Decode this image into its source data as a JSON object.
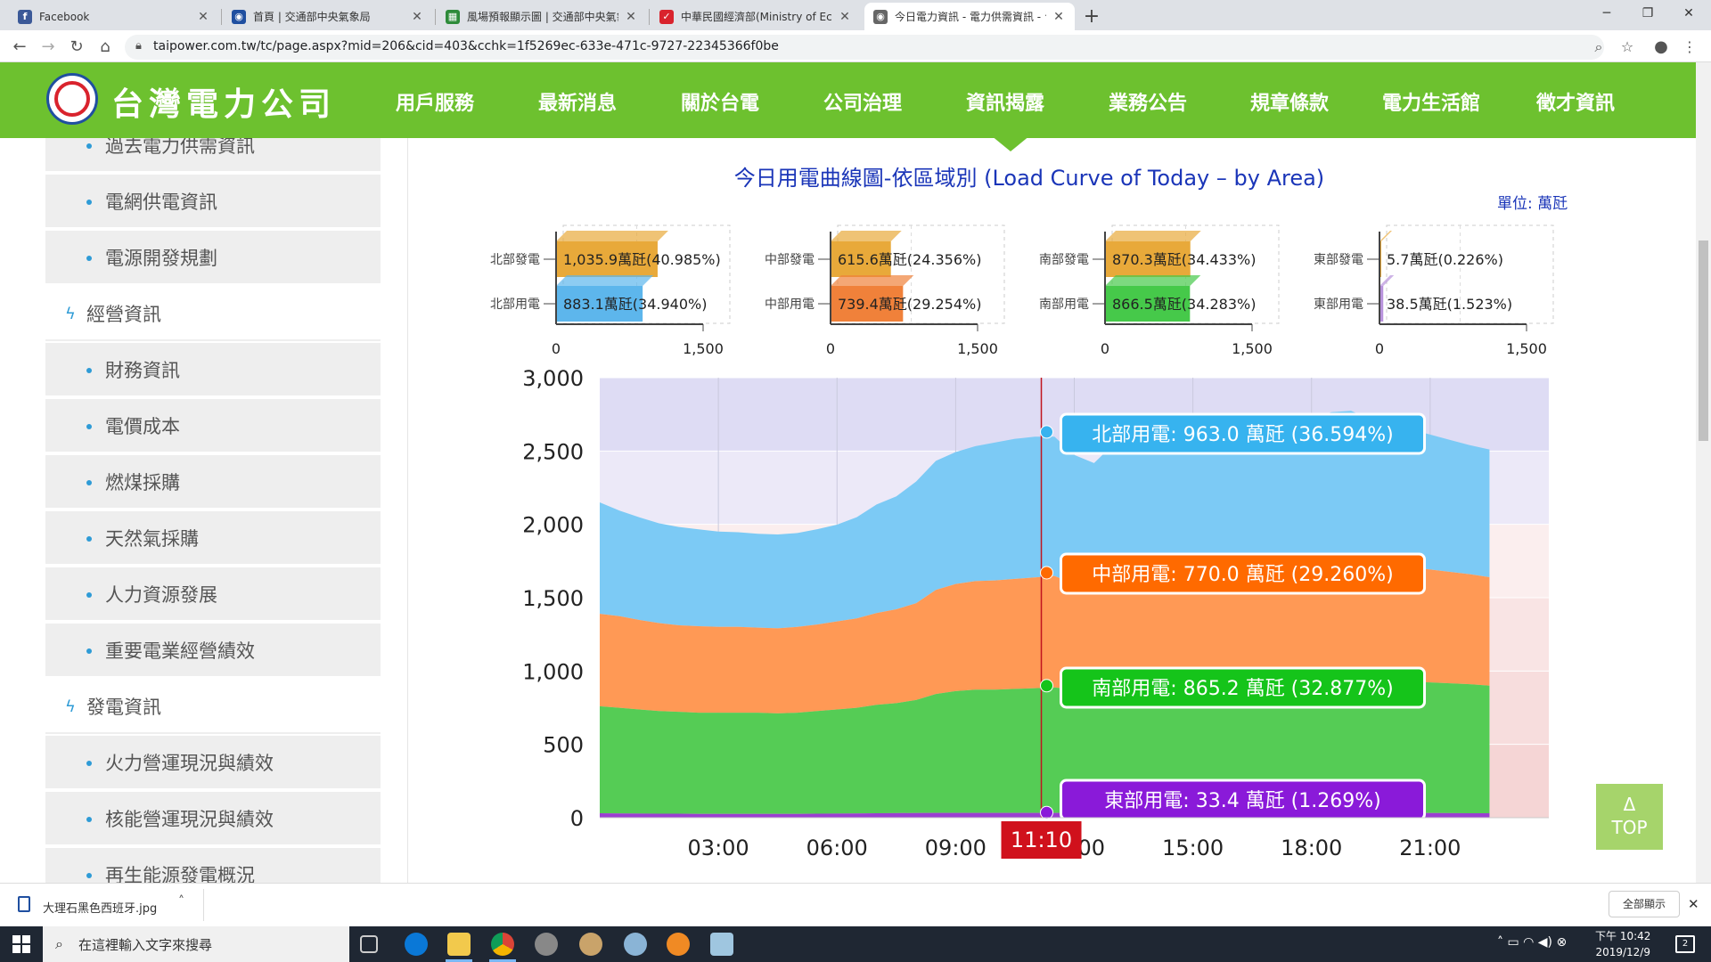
{
  "browser": {
    "tabs": [
      {
        "title": "Facebook",
        "favicon_color": "#3b5998",
        "favicon_char": "f"
      },
      {
        "title": "首頁 | 交通部中央氣象局",
        "favicon_color": "#1f4fa0",
        "favicon_char": "◉"
      },
      {
        "title": "風場預報顯示圖 | 交通部中央氣象局",
        "favicon_color": "#2e8b3a",
        "favicon_char": "▦"
      },
      {
        "title": "中華民國經濟部(Ministry of Econ",
        "favicon_color": "#d9232d",
        "favicon_char": "✓"
      },
      {
        "title": "今日電力資訊 - 電力供需資訊 - 台",
        "favicon_color": "#666666",
        "favicon_char": "◉"
      }
    ],
    "url": "taipower.com.tw/tc/page.aspx?mid=206&cid=403&cchk=1f5269ec-633e-471c-9727-22345366f0be",
    "new_tab": "+",
    "win_min": "─",
    "win_max": "❐",
    "win_close": "✕"
  },
  "site": {
    "logo_text": "台灣電力公司",
    "menu": [
      "用戶服務",
      "最新消息",
      "關於台電",
      "公司治理",
      "資訊揭露",
      "業務公告",
      "規章條款",
      "電力生活館",
      "徵才資訊"
    ]
  },
  "sidebar": {
    "items": [
      {
        "label": "過去電力供需資訊",
        "kind": "sub"
      },
      {
        "label": "電網供電資訊",
        "kind": "sub"
      },
      {
        "label": "電源開發規劃",
        "kind": "sub"
      },
      {
        "label": "經營資訊",
        "kind": "main"
      },
      {
        "label": "財務資訊",
        "kind": "sub"
      },
      {
        "label": "電價成本",
        "kind": "sub"
      },
      {
        "label": "燃煤採購",
        "kind": "sub"
      },
      {
        "label": "天然氣採購",
        "kind": "sub"
      },
      {
        "label": "人力資源發展",
        "kind": "sub"
      },
      {
        "label": "重要電業經營績效",
        "kind": "sub"
      },
      {
        "label": "發電資訊",
        "kind": "main"
      },
      {
        "label": "火力營運現況與績效",
        "kind": "sub"
      },
      {
        "label": "核能營運現況與績效",
        "kind": "sub"
      },
      {
        "label": "再生能源發電概況",
        "kind": "sub"
      }
    ]
  },
  "chart_data": [
    {
      "type": "bar",
      "region": "北部",
      "categories": [
        "北部發電",
        "北部用電"
      ],
      "labels": [
        "1,035.9萬瓩(40.985%)",
        "883.1萬瓩(34.940%)"
      ],
      "values": [
        1035.9,
        883.1
      ],
      "colors": [
        "#e8a93a",
        "#5db6ec"
      ],
      "xlim": [
        0,
        1500
      ],
      "ticks": [
        "0",
        "1,500"
      ]
    },
    {
      "type": "bar",
      "region": "中部",
      "categories": [
        "中部發電",
        "中部用電"
      ],
      "labels": [
        "615.6萬瓩(24.356%)",
        "739.4萬瓩(29.254%)"
      ],
      "values": [
        615.6,
        739.4
      ],
      "colors": [
        "#e8a93a",
        "#f0813a"
      ],
      "xlim": [
        0,
        1500
      ],
      "ticks": [
        "0",
        "1,500"
      ]
    },
    {
      "type": "bar",
      "region": "南部",
      "categories": [
        "南部發電",
        "南部用電"
      ],
      "labels": [
        "870.3萬瓩(34.433%)",
        "866.5萬瓩(34.283%)"
      ],
      "values": [
        870.3,
        866.5
      ],
      "colors": [
        "#e8a93a",
        "#46c94a"
      ],
      "xlim": [
        0,
        1500
      ],
      "ticks": [
        "0",
        "1,500"
      ]
    },
    {
      "type": "bar",
      "region": "東部",
      "categories": [
        "東部發電",
        "東部用電"
      ],
      "labels": [
        "5.7萬瓩(0.226%)",
        "38.5萬瓩(1.523%)"
      ],
      "values": [
        5.7,
        38.5
      ],
      "colors": [
        "#e8a93a",
        "#b893dc"
      ],
      "xlim": [
        0,
        1500
      ],
      "ticks": [
        "0",
        "1,500"
      ]
    },
    {
      "type": "area",
      "title": "今日用電曲線圖-依區域別 (Load Curve of Today – by Area)",
      "unit": "單位: 萬瓩",
      "stacked": true,
      "x_hours": [
        0,
        0.5,
        1,
        1.5,
        2,
        2.5,
        3,
        3.5,
        4,
        4.5,
        5,
        5.5,
        6,
        6.5,
        7,
        7.5,
        8,
        8.5,
        9,
        9.5,
        10,
        10.5,
        11,
        11.5,
        12,
        12.5,
        13,
        13.5,
        14,
        14.5,
        15,
        15.5,
        16,
        16.5,
        17,
        17.5,
        18,
        18.5,
        19,
        19.5,
        20,
        20.5,
        21,
        21.5,
        22,
        22.5
      ],
      "xticks": [
        "03:00",
        "06:00",
        "09:00",
        "12:00",
        "15:00",
        "18:00",
        "21:00"
      ],
      "xtick_hours": [
        3,
        6,
        9,
        12,
        15,
        18,
        21
      ],
      "ylim": [
        0,
        3000
      ],
      "yticks": [
        "0",
        "500",
        "1,000",
        "1,500",
        "2,000",
        "2,500",
        "3,000"
      ],
      "ytick_values": [
        0,
        500,
        1000,
        1500,
        2000,
        2500,
        3000
      ],
      "series": [
        {
          "name": "東部用電",
          "color": "#9b3fd0",
          "values": [
            30,
            29,
            28,
            27,
            27,
            26,
            26,
            26,
            26,
            26,
            26,
            27,
            28,
            29,
            30,
            31,
            32,
            33,
            33,
            33,
            33,
            33,
            33,
            33,
            33,
            33,
            33,
            33,
            33,
            33,
            33,
            33,
            33,
            33,
            33,
            34,
            35,
            35,
            34,
            34,
            33,
            33,
            32,
            31,
            30,
            30
          ]
        },
        {
          "name": "南部用電",
          "color": "#55cc55",
          "values": [
            730,
            720,
            710,
            700,
            695,
            690,
            690,
            690,
            690,
            685,
            690,
            700,
            710,
            720,
            740,
            750,
            770,
            810,
            830,
            840,
            840,
            845,
            850,
            855,
            840,
            835,
            845,
            850,
            850,
            855,
            860,
            870,
            875,
            880,
            885,
            885,
            890,
            900,
            910,
            900,
            900,
            895,
            890,
            885,
            880,
            870
          ]
        },
        {
          "name": "中部用電",
          "color": "#ff9955",
          "values": [
            630,
            625,
            610,
            600,
            590,
            590,
            585,
            585,
            580,
            580,
            585,
            590,
            600,
            610,
            625,
            640,
            660,
            710,
            730,
            740,
            745,
            750,
            755,
            760,
            720,
            700,
            740,
            750,
            760,
            765,
            770,
            770,
            770,
            775,
            780,
            785,
            790,
            800,
            810,
            800,
            790,
            780,
            770,
            760,
            750,
            740
          ]
        },
        {
          "name": "北部用電",
          "color": "#7ccaf5",
          "values": [
            760,
            720,
            700,
            680,
            670,
            660,
            650,
            645,
            640,
            640,
            640,
            650,
            660,
            690,
            740,
            770,
            830,
            880,
            900,
            920,
            940,
            955,
            960,
            950,
            880,
            850,
            930,
            950,
            960,
            965,
            970,
            975,
            970,
            965,
            960,
            965,
            1000,
            1030,
            1020,
            980,
            960,
            940,
            920,
            900,
            880,
            870
          ]
        }
      ],
      "current_time": "11:10",
      "current_hour": 11.1667,
      "tooltips": [
        {
          "text": "北部用電: 963.0 萬瓩 (36.594%)",
          "color": "#37b3ef",
          "value": 2630
        },
        {
          "text": "中部用電: 770.0 萬瓩 (29.260%)",
          "color": "#ff6a00",
          "value": 1670
        },
        {
          "text": "南部用電: 865.2 萬瓩 (32.877%)",
          "color": "#15c41a",
          "value": 900
        },
        {
          "text": "東部用電: 33.4 萬瓩 (1.269%)",
          "color": "#8a1ad9",
          "value": 35
        }
      ]
    }
  ],
  "top_button": {
    "arrow": "Δ",
    "label": "TOP"
  },
  "downloads": {
    "file": "大理石黑色西班牙.jpg",
    "show_all": "全部顯示",
    "close": "✕"
  },
  "taskbar": {
    "search_placeholder": "在這裡輸入文字來搜尋",
    "time": "下午 10:42",
    "date": "2019/12/9",
    "notif_count": "2"
  }
}
